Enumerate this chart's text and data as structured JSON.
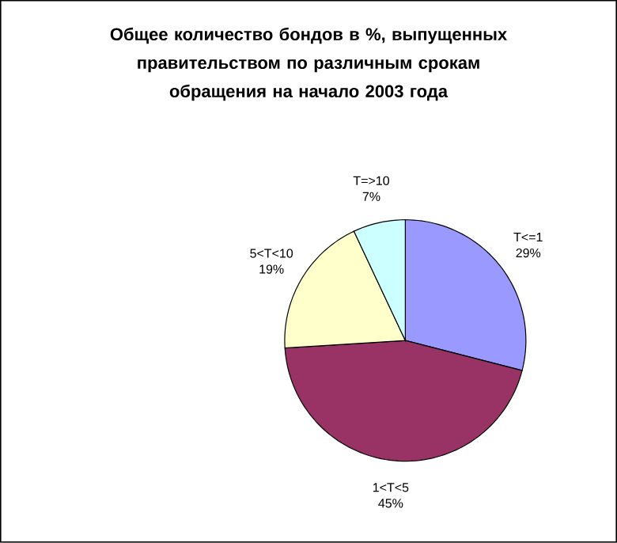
{
  "chart_data": {
    "type": "pie",
    "title": "Общее количество бондов в %, выпущенных правительством по различным срокам обращения на начало 2003 года",
    "categories": [
      "T<=1",
      "1<T<5",
      "5<T<10",
      "T=>10"
    ],
    "values": [
      29,
      45,
      19,
      7
    ],
    "colors": [
      "#9999ff",
      "#993366",
      "#ffffcc",
      "#ccffff"
    ],
    "value_labels": [
      "29%",
      "45%",
      "19%",
      "7%"
    ]
  }
}
